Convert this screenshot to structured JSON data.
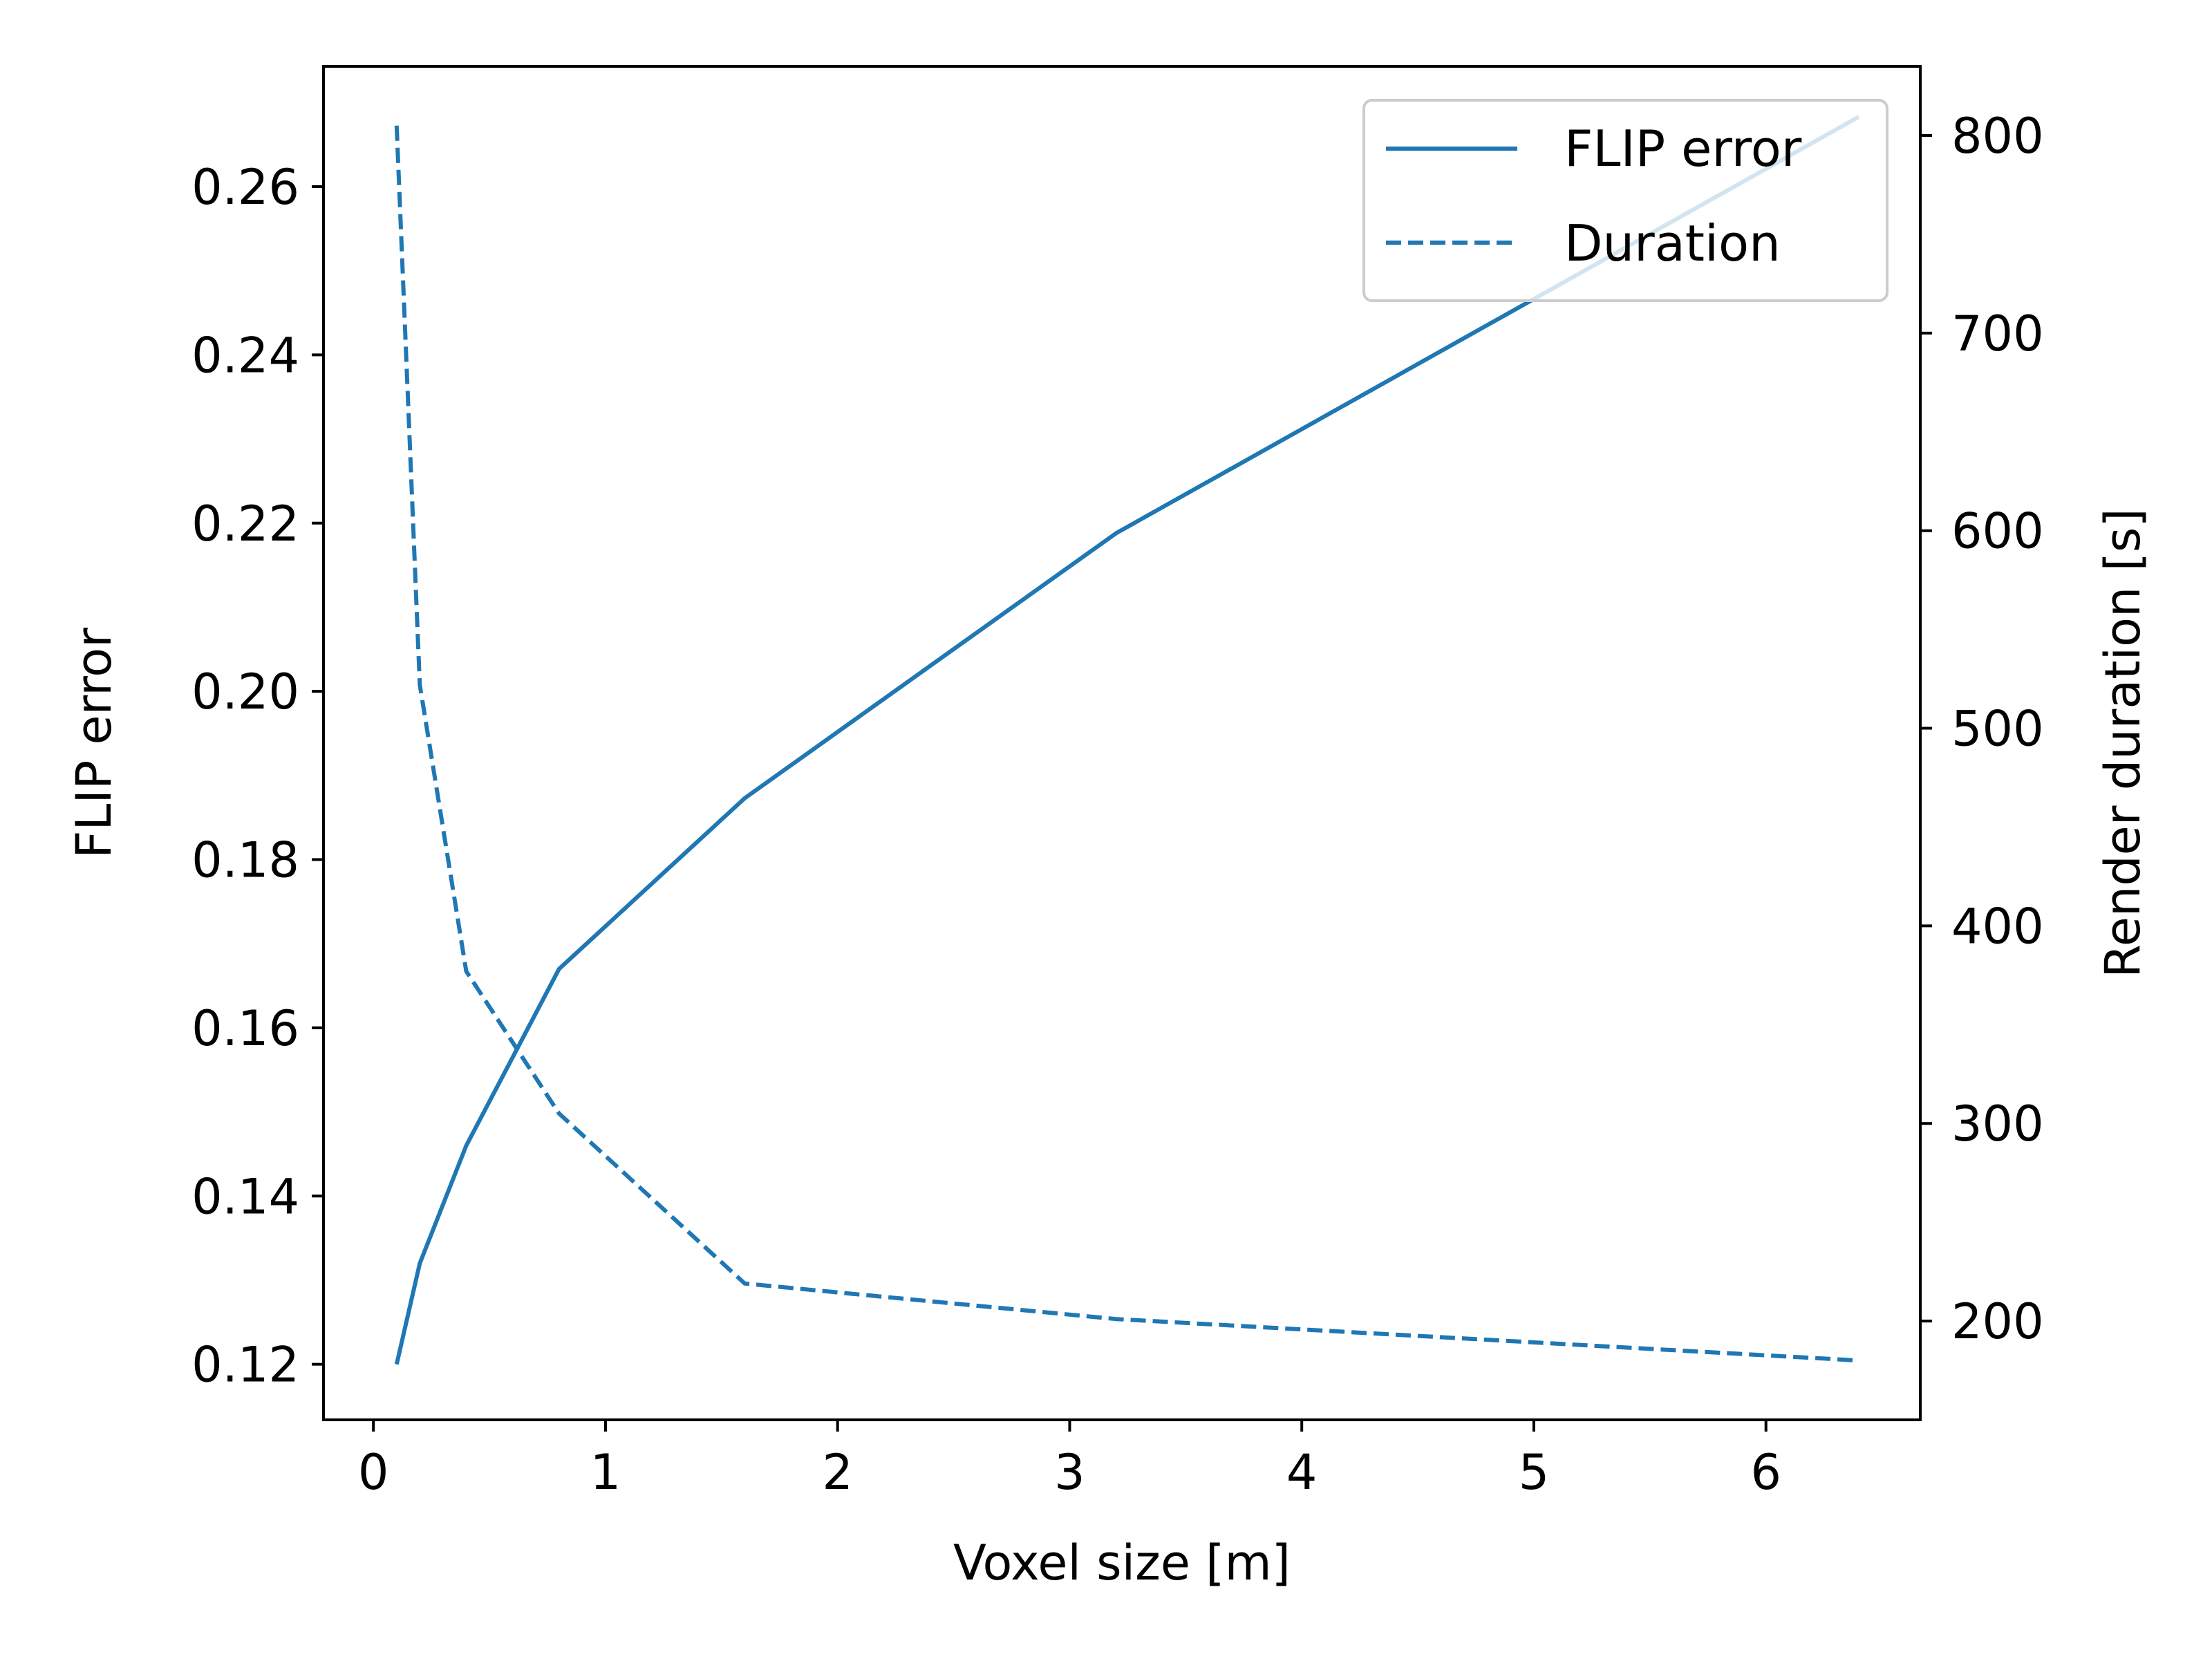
{
  "chart_data": {
    "type": "line",
    "xlabel": "Voxel size [m]",
    "ylabel": "FLIP error",
    "y2label": "Render duration [s]",
    "xlim": [
      -0.215,
      6.665
    ],
    "ylim": [
      0.1134,
      0.2743
    ],
    "y2lim": [
      150,
      835
    ],
    "xticks": [
      0,
      1,
      2,
      3,
      4,
      5,
      6
    ],
    "yticks": [
      0.12,
      0.14,
      0.16,
      0.18,
      0.2,
      0.22,
      0.24,
      0.26
    ],
    "ytick_labels": [
      "0.12",
      "0.14",
      "0.16",
      "0.18",
      "0.20",
      "0.22",
      "0.24",
      "0.26"
    ],
    "y2ticks": [
      200,
      300,
      400,
      500,
      600,
      700,
      800
    ],
    "legend_position": "top-right",
    "grid": false,
    "series": [
      {
        "name": "FLIP error",
        "axis": "left",
        "style": "solid",
        "color": "#1f77b4",
        "x": [
          0.1,
          0.2,
          0.4,
          0.8,
          1.6,
          3.2,
          6.4
        ],
        "values": [
          0.12,
          0.132,
          0.146,
          0.167,
          0.1873,
          0.2188,
          0.2683
        ]
      },
      {
        "name": "Duration",
        "axis": "right",
        "style": "dashed",
        "color": "#1f77b4",
        "x": [
          0.1,
          0.2,
          0.4,
          0.8,
          1.6,
          3.2,
          6.4
        ],
        "values": [
          805,
          522,
          377,
          305,
          219,
          201,
          180
        ]
      }
    ]
  }
}
